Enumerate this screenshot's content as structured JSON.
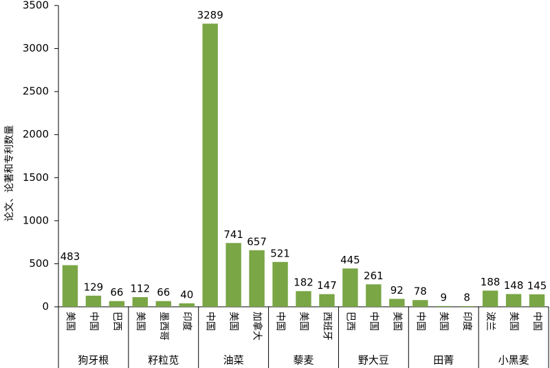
{
  "chart_data": {
    "type": "bar",
    "ylabel": "论文、论著和专利数量",
    "color": "#7aa646",
    "ylim": [
      0,
      3500
    ],
    "yticks": [
      0,
      500,
      1000,
      1500,
      2000,
      2500,
      3000,
      3500
    ],
    "groups": [
      {
        "name": "狗牙根",
        "categories": [
          "美国",
          "中国",
          "巴西"
        ],
        "values": [
          483,
          129,
          66
        ]
      },
      {
        "name": "籽粒苋",
        "categories": [
          "美国",
          "墨西哥",
          "印度"
        ],
        "values": [
          112,
          66,
          40
        ]
      },
      {
        "name": "油菜",
        "categories": [
          "中国",
          "美国",
          "加拿大"
        ],
        "values": [
          3289,
          741,
          657
        ]
      },
      {
        "name": "藜麦",
        "categories": [
          "中国",
          "美国",
          "西班牙"
        ],
        "values": [
          521,
          182,
          147
        ]
      },
      {
        "name": "野大豆",
        "categories": [
          "巴西",
          "中国",
          "美国"
        ],
        "values": [
          445,
          261,
          92
        ]
      },
      {
        "name": "田菁",
        "categories": [
          "中国",
          "美国",
          "印度"
        ],
        "values": [
          78,
          9,
          8
        ]
      },
      {
        "name": "小黑麦",
        "categories": [
          "波兰",
          "美国",
          "中国"
        ],
        "values": [
          188,
          148,
          145
        ]
      }
    ]
  }
}
